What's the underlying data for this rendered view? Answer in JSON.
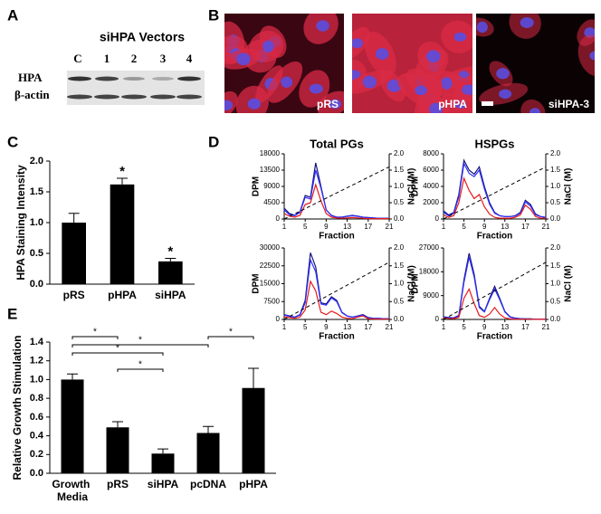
{
  "panel_labels": [
    "A",
    "B",
    "C",
    "D",
    "E"
  ],
  "blot": {
    "title": "siHPA Vectors",
    "lanes": [
      "C",
      "1",
      "2",
      "3",
      "4"
    ],
    "rows": [
      "HPA",
      "β-actin"
    ]
  },
  "micrographs": {
    "labels": [
      "pRS",
      "pHPA",
      "siHPA-3"
    ]
  },
  "chart_data": [
    {
      "type": "bar",
      "ylabel": "HPA Staining Intensity",
      "categories": [
        "pRS",
        "pHPA",
        "siHPA"
      ],
      "values": [
        1.0,
        1.62,
        0.37
      ],
      "errors": [
        0.15,
        0.1,
        0.05
      ],
      "significance": [
        null,
        "*",
        "*"
      ],
      "color": "#000000",
      "ylim": [
        0,
        2
      ],
      "yticks": [
        {
          "value": 0,
          "label": "0.0"
        },
        {
          "value": 0.5,
          "label": "0.5"
        },
        {
          "value": 1,
          "label": "1.0"
        },
        {
          "value": 1.5,
          "label": "1.5"
        },
        {
          "value": 2,
          "label": "2.0"
        }
      ]
    },
    {
      "type": "line",
      "title": "Total PGs",
      "xlabel": "Fraction",
      "ylabel": "DPM",
      "y2label": "NaCl (M)",
      "x": [
        1,
        2,
        3,
        4,
        5,
        6,
        7,
        8,
        9,
        10,
        11,
        12,
        13,
        14,
        15,
        16,
        17,
        18,
        19,
        20,
        21
      ],
      "xlim": [
        1,
        21
      ],
      "xticks": [
        1,
        5,
        9,
        13,
        17,
        21
      ],
      "ylim": [
        0,
        18000
      ],
      "yticks": [
        0,
        4500,
        9000,
        13500,
        18000
      ],
      "y2lim": [
        0,
        2
      ],
      "y2ticks": [
        {
          "value": 0,
          "label": "0.0"
        },
        {
          "value": 0.5,
          "label": "0.5"
        },
        {
          "value": 1,
          "label": "1.0"
        },
        {
          "value": 1.5,
          "label": "1.5"
        },
        {
          "value": 2,
          "label": "2.0"
        }
      ],
      "series": [
        {
          "color": "#14147a",
          "values": [
            3000,
            1500,
            1000,
            2000,
            6500,
            6000,
            15500,
            9000,
            2500,
            1000,
            500,
            500,
            800,
            1000,
            800,
            500,
            400,
            300,
            200,
            200,
            200
          ]
        },
        {
          "color": "#2f2fff",
          "values": [
            2500,
            1200,
            900,
            1800,
            6000,
            5500,
            13500,
            8500,
            2500,
            900,
            500,
            500,
            700,
            900,
            700,
            500,
            300,
            300,
            200,
            200,
            200
          ]
        },
        {
          "color": "#e8191a",
          "values": [
            1500,
            800,
            500,
            1000,
            4000,
            4500,
            9500,
            5000,
            1500,
            500,
            300,
            200,
            300,
            400,
            300,
            200,
            100,
            100,
            100,
            100,
            100
          ]
        },
        {
          "color": "#000000",
          "dashed": true,
          "axis": "y2",
          "values": [
            0,
            0.08,
            0.16,
            0.24,
            0.32,
            0.4,
            0.48,
            0.56,
            0.64,
            0.72,
            0.8,
            0.88,
            0.96,
            1.04,
            1.12,
            1.2,
            1.28,
            1.36,
            1.44,
            1.52,
            1.6
          ]
        }
      ]
    },
    {
      "type": "line",
      "title": "HSPGs",
      "xlabel": "Fraction",
      "ylabel": "DPM",
      "y2label": "NaCl (M)",
      "x": [
        1,
        2,
        3,
        4,
        5,
        6,
        7,
        8,
        9,
        10,
        11,
        12,
        13,
        14,
        15,
        16,
        17,
        18,
        19,
        20,
        21
      ],
      "xlim": [
        1,
        21
      ],
      "xticks": [
        1,
        5,
        9,
        13,
        17,
        21
      ],
      "ylim": [
        0,
        8000
      ],
      "yticks": [
        0,
        2000,
        4000,
        6000,
        8000
      ],
      "y2lim": [
        0,
        2
      ],
      "y2ticks": [
        {
          "value": 0,
          "label": "0.0"
        },
        {
          "value": 0.5,
          "label": "0.5"
        },
        {
          "value": 1,
          "label": "1.0"
        },
        {
          "value": 1.5,
          "label": "1.5"
        },
        {
          "value": 2,
          "label": "2.0"
        }
      ],
      "series": [
        {
          "color": "#14147a",
          "values": [
            1000,
            500,
            800,
            3000,
            7200,
            6000,
            5500,
            6400,
            4000,
            2000,
            800,
            400,
            300,
            300,
            400,
            800,
            2300,
            1800,
            600,
            300,
            200
          ]
        },
        {
          "color": "#2f2fff",
          "values": [
            800,
            400,
            700,
            2700,
            6800,
            5600,
            5200,
            6000,
            3700,
            1800,
            700,
            400,
            300,
            300,
            350,
            700,
            2100,
            1600,
            500,
            300,
            200
          ]
        },
        {
          "color": "#e8191a",
          "values": [
            500,
            200,
            400,
            2000,
            5000,
            3500,
            2500,
            3000,
            1500,
            600,
            200,
            100,
            100,
            100,
            200,
            500,
            1700,
            1200,
            300,
            100,
            100
          ]
        },
        {
          "color": "#000000",
          "dashed": true,
          "axis": "y2",
          "values": [
            0,
            0.08,
            0.16,
            0.24,
            0.32,
            0.4,
            0.48,
            0.56,
            0.64,
            0.72,
            0.8,
            0.88,
            0.96,
            1.04,
            1.12,
            1.2,
            1.28,
            1.36,
            1.44,
            1.52,
            1.6
          ]
        }
      ]
    },
    {
      "type": "line",
      "xlabel": "Fraction",
      "ylabel": "DPM",
      "y2label": "NaCl (M)",
      "x": [
        1,
        2,
        3,
        4,
        5,
        6,
        7,
        8,
        9,
        10,
        11,
        12,
        13,
        14,
        15,
        16,
        17,
        18,
        19,
        20,
        21
      ],
      "xlim": [
        1,
        21
      ],
      "xticks": [
        1,
        5,
        9,
        13,
        17,
        21
      ],
      "ylim": [
        0,
        30000
      ],
      "yticks": [
        0,
        7500,
        15000,
        22500,
        30000
      ],
      "y2lim": [
        0,
        2
      ],
      "y2ticks": [
        {
          "value": 0,
          "label": "0.0"
        },
        {
          "value": 0.5,
          "label": "0.5"
        },
        {
          "value": 1,
          "label": "1.0"
        },
        {
          "value": 1.5,
          "label": "1.5"
        },
        {
          "value": 2,
          "label": "2.0"
        }
      ],
      "series": [
        {
          "color": "#14147a",
          "values": [
            2000,
            1500,
            1000,
            2000,
            8000,
            28000,
            22000,
            7000,
            6500,
            9500,
            8000,
            3000,
            1500,
            1000,
            1500,
            2000,
            800,
            500,
            400,
            300,
            300
          ]
        },
        {
          "color": "#2f2fff",
          "values": [
            1800,
            1300,
            900,
            1800,
            7000,
            25000,
            20000,
            6500,
            6000,
            9000,
            7500,
            2800,
            1400,
            900,
            1400,
            1800,
            700,
            500,
            400,
            300,
            300
          ]
        },
        {
          "color": "#e8191a",
          "values": [
            1000,
            800,
            500,
            1000,
            4000,
            16000,
            12000,
            3000,
            2000,
            3500,
            2500,
            1000,
            500,
            300,
            1000,
            1500,
            300,
            200,
            100,
            100,
            100
          ]
        },
        {
          "color": "#000000",
          "dashed": true,
          "axis": "y2",
          "values": [
            0,
            0.08,
            0.16,
            0.24,
            0.32,
            0.4,
            0.48,
            0.56,
            0.64,
            0.72,
            0.8,
            0.88,
            0.96,
            1.04,
            1.12,
            1.2,
            1.28,
            1.36,
            1.44,
            1.52,
            1.6
          ]
        }
      ]
    },
    {
      "type": "line",
      "xlabel": "Fraction",
      "ylabel": "DPM",
      "y2label": "NaCl (M)",
      "x": [
        1,
        2,
        3,
        4,
        5,
        6,
        7,
        8,
        9,
        10,
        11,
        12,
        13,
        14,
        15,
        16,
        17,
        18,
        19,
        20,
        21
      ],
      "xlim": [
        1,
        21
      ],
      "xticks": [
        1,
        5,
        9,
        13,
        17,
        21
      ],
      "ylim": [
        0,
        27000
      ],
      "yticks": [
        0,
        9000,
        18000,
        27000
      ],
      "y2lim": [
        0,
        2
      ],
      "y2ticks": [
        {
          "value": 0,
          "label": "0.0"
        },
        {
          "value": 0.5,
          "label": "0.5"
        },
        {
          "value": 1,
          "label": "1.0"
        },
        {
          "value": 1.5,
          "label": "1.5"
        },
        {
          "value": 2,
          "label": "2.0"
        }
      ],
      "series": [
        {
          "color": "#14147a",
          "values": [
            1000,
            800,
            600,
            1500,
            15000,
            25000,
            17000,
            5000,
            3000,
            8000,
            12500,
            8000,
            3000,
            1000,
            500,
            300,
            200,
            200,
            100,
            100,
            100
          ]
        },
        {
          "color": "#2f2fff",
          "values": [
            900,
            700,
            500,
            1300,
            14000,
            23500,
            16000,
            4500,
            2800,
            7500,
            11500,
            7500,
            2800,
            900,
            400,
            300,
            200,
            200,
            100,
            100,
            100
          ]
        },
        {
          "color": "#e8191a",
          "values": [
            600,
            400,
            300,
            800,
            8000,
            11500,
            6000,
            1500,
            800,
            2000,
            4500,
            2000,
            600,
            200,
            100,
            100,
            100,
            100,
            50,
            50,
            50
          ]
        },
        {
          "color": "#000000",
          "dashed": true,
          "axis": "y2",
          "values": [
            0,
            0.08,
            0.16,
            0.24,
            0.32,
            0.4,
            0.48,
            0.56,
            0.64,
            0.72,
            0.8,
            0.88,
            0.96,
            1.04,
            1.12,
            1.2,
            1.28,
            1.36,
            1.44,
            1.52,
            1.6
          ]
        }
      ]
    },
    {
      "type": "bar",
      "ylabel": "Relative Growth Stimulation",
      "categories": [
        "Growth Media",
        "pRS",
        "siHPA",
        "pcDNA",
        "pHPA"
      ],
      "values": [
        1.0,
        0.49,
        0.21,
        0.43,
        0.91
      ],
      "errors": [
        0.06,
        0.06,
        0.05,
        0.07,
        0.21
      ],
      "color": "#000000",
      "ylim": [
        0,
        1.4
      ],
      "yticks": [
        {
          "value": 0,
          "label": "0.0"
        },
        {
          "value": 0.2,
          "label": "0.2"
        },
        {
          "value": 0.4,
          "label": "0.4"
        },
        {
          "value": 0.6,
          "label": "0.6"
        },
        {
          "value": 0.8,
          "label": "0.8"
        },
        {
          "value": 1,
          "label": "1.0"
        },
        {
          "value": 1.2,
          "label": "1.2"
        },
        {
          "value": 1.4,
          "label": "1.4"
        }
      ],
      "comparisons": [
        {
          "label": "*",
          "between": [
            "Growth Media",
            "pRS"
          ]
        },
        {
          "label": "*",
          "between": [
            "pRS",
            "siHPA"
          ]
        },
        {
          "label": "*",
          "between": [
            "Growth Media",
            "siHPA"
          ]
        },
        {
          "label": "*",
          "between": [
            "Growth Media",
            "pcDNA"
          ]
        },
        {
          "label": "*",
          "between": [
            "pcDNA",
            "pHPA"
          ]
        }
      ]
    }
  ]
}
